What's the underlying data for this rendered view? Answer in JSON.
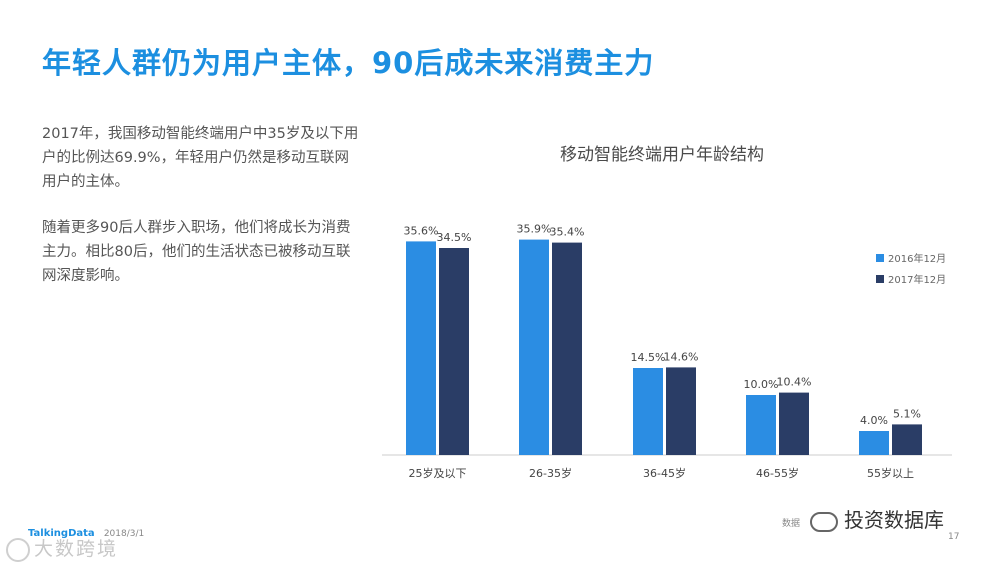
{
  "slide": {
    "title": "年轻人群仍为用户主体，90后成未来消费主力",
    "paragraphs": [
      "2017年，我国移动智能终端用户中35岁及以下用户的比例达69.9%，年轻用户仍然是移动互联网用户的主体。",
      "随着更多90后人群步入职场，他们将成长为消费主力。相比80后，他们的生活状态已被移动互联网深度影响。"
    ]
  },
  "footer": {
    "brand": "TalkingData",
    "date": "2018/3/1",
    "page_number": "17",
    "source_note": "数据",
    "watermark_left": "大数跨境",
    "watermark_right": "投资数据库"
  },
  "colors": {
    "title": "#1c8fe0",
    "series_2016": "#2b8de3",
    "series_2017": "#2a3d66"
  },
  "chart_data": {
    "type": "bar",
    "title": "移动智能终端用户年龄结构",
    "categories": [
      "25岁及以下",
      "26-35岁",
      "36-45岁",
      "46-55岁",
      "55岁以上"
    ],
    "series": [
      {
        "name": "2016年12月",
        "values": [
          35.6,
          35.9,
          14.5,
          10.0,
          4.0
        ],
        "labels": [
          "35.6%",
          "35.9%",
          "14.5%",
          "10.0%",
          "4.0%"
        ]
      },
      {
        "name": "2017年12月",
        "values": [
          34.5,
          35.4,
          14.6,
          10.4,
          5.1
        ],
        "labels": [
          "34.5%",
          "35.4%",
          "14.6%",
          "10.4%",
          "5.1%"
        ]
      }
    ],
    "xlabel": "",
    "ylabel": "",
    "ylim": [
      0,
      40
    ],
    "grid": false,
    "legend": "top-right"
  }
}
